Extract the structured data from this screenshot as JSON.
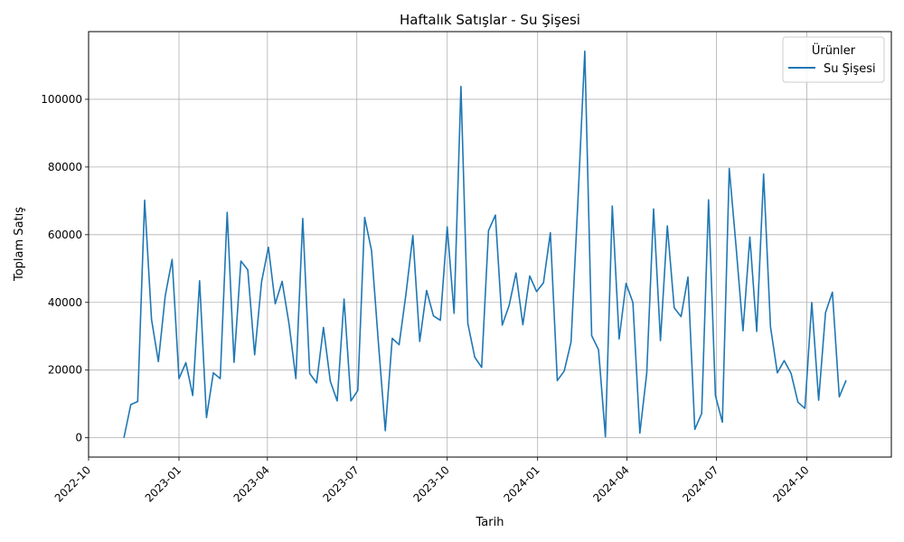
{
  "chart_data": {
    "type": "line",
    "title": "Haftalık Satışlar - Su Şişesi",
    "xlabel": "Tarih",
    "ylabel": "Toplam Satış",
    "x_range": [
      "2022-10-01",
      "2024-12-26"
    ],
    "ylim": [
      -5700,
      120000
    ],
    "x_ticks": [
      "2022-10",
      "2023-01",
      "2023-04",
      "2023-07",
      "2023-10",
      "2024-01",
      "2024-04",
      "2024-07",
      "2024-10"
    ],
    "y_ticks": [
      0,
      20000,
      40000,
      60000,
      80000,
      100000
    ],
    "grid": true,
    "legend": {
      "title": "Ürünler",
      "placement": "top-right"
    },
    "series": [
      {
        "name": "Su Şişesi",
        "color": "#1f77b4",
        "x": [
          "2022-11-06",
          "2022-11-13",
          "2022-11-20",
          "2022-11-27",
          "2022-12-04",
          "2022-12-11",
          "2022-12-18",
          "2022-12-25",
          "2023-01-01",
          "2023-01-08",
          "2023-01-15",
          "2023-01-22",
          "2023-01-29",
          "2023-02-05",
          "2023-02-12",
          "2023-02-19",
          "2023-02-26",
          "2023-03-05",
          "2023-03-12",
          "2023-03-19",
          "2023-03-26",
          "2023-04-02",
          "2023-04-09",
          "2023-04-16",
          "2023-04-23",
          "2023-04-30",
          "2023-05-07",
          "2023-05-14",
          "2023-05-21",
          "2023-05-28",
          "2023-06-04",
          "2023-06-11",
          "2023-06-18",
          "2023-06-25",
          "2023-07-02",
          "2023-07-09",
          "2023-07-16",
          "2023-07-23",
          "2023-07-30",
          "2023-08-06",
          "2023-08-13",
          "2023-08-20",
          "2023-08-27",
          "2023-09-03",
          "2023-09-10",
          "2023-09-17",
          "2023-09-24",
          "2023-10-01",
          "2023-10-08",
          "2023-10-15",
          "2023-10-22",
          "2023-10-29",
          "2023-11-05",
          "2023-11-12",
          "2023-11-19",
          "2023-11-26",
          "2023-12-03",
          "2023-12-10",
          "2023-12-17",
          "2023-12-24",
          "2023-12-31",
          "2024-01-07",
          "2024-01-14",
          "2024-01-21",
          "2024-01-28",
          "2024-02-04",
          "2024-02-11",
          "2024-02-18",
          "2024-02-25",
          "2024-03-03",
          "2024-03-10",
          "2024-03-17",
          "2024-03-24",
          "2024-03-31",
          "2024-04-07",
          "2024-04-14",
          "2024-04-21",
          "2024-04-28",
          "2024-05-05",
          "2024-05-12",
          "2024-05-19",
          "2024-05-26",
          "2024-06-02",
          "2024-06-09",
          "2024-06-16",
          "2024-06-23",
          "2024-06-30",
          "2024-07-07",
          "2024-07-14",
          "2024-07-21",
          "2024-07-28",
          "2024-08-04",
          "2024-08-11",
          "2024-08-18",
          "2024-08-25",
          "2024-09-01",
          "2024-09-08",
          "2024-09-15",
          "2024-09-22",
          "2024-09-29",
          "2024-10-06",
          "2024-10-13",
          "2024-10-20",
          "2024-10-27",
          "2024-11-03",
          "2024-11-10"
        ],
        "values": [
          0,
          9800,
          10700,
          70200,
          35000,
          22500,
          42000,
          52700,
          17500,
          22200,
          12500,
          46400,
          6000,
          19200,
          17500,
          66600,
          22300,
          52200,
          49600,
          24500,
          46000,
          56300,
          39600,
          46200,
          33700,
          17500,
          64800,
          19000,
          16200,
          32600,
          16700,
          10900,
          41000,
          10900,
          14000,
          65100,
          55300,
          28000,
          2100,
          29400,
          27500,
          42500,
          59800,
          28500,
          43500,
          36000,
          34700,
          62300,
          36800,
          103800,
          33800,
          23800,
          20800,
          61200,
          65800,
          33300,
          39100,
          48700,
          33400,
          47800,
          43200,
          45800,
          60600,
          16900,
          19700,
          28300,
          70000,
          114200,
          30200,
          26000,
          300,
          68500,
          29200,
          45600,
          40000,
          1400,
          19000,
          67600,
          28700,
          62600,
          38400,
          35800,
          47500,
          2500,
          7200,
          70300,
          12500,
          4600,
          79600,
          56300,
          31600,
          59300,
          31400,
          77900,
          32800,
          19200,
          22800,
          19000,
          10500,
          8700,
          40000,
          11100,
          37000,
          43000,
          12100,
          17000
        ]
      }
    ]
  }
}
